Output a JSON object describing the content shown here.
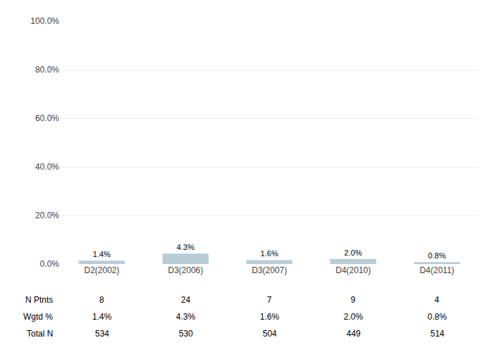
{
  "chart_data": {
    "type": "bar",
    "categories": [
      "D2(2002)",
      "D3(2006)",
      "D3(2007)",
      "D4(2010)",
      "D4(2011)"
    ],
    "values": [
      1.4,
      4.3,
      1.6,
      2.0,
      0.8
    ],
    "value_labels": [
      "1.4%",
      "4.3%",
      "1.6%",
      "2.0%",
      "0.8%"
    ],
    "data_labels": true,
    "color": "#b8cdd8",
    "ylim": [
      0,
      100
    ],
    "yticks": [
      {
        "value": 0,
        "label": "0.0%"
      },
      {
        "value": 20,
        "label": "20.0%"
      },
      {
        "value": 40,
        "label": "40.0%"
      },
      {
        "value": 60,
        "label": "60.0%"
      },
      {
        "value": 80,
        "label": "80.0%"
      },
      {
        "value": 100,
        "label": "100.0%"
      }
    ],
    "grid": true,
    "table": [
      {
        "label": "N Ptnts",
        "values": [
          8,
          24,
          7,
          9,
          4
        ]
      },
      {
        "label": "Wgtd %",
        "values": [
          "1.4%",
          "4.3%",
          "1.6%",
          "2.0%",
          "0.8%"
        ]
      },
      {
        "label": "Total N",
        "values": [
          534,
          530,
          504,
          449,
          514
        ]
      }
    ]
  }
}
